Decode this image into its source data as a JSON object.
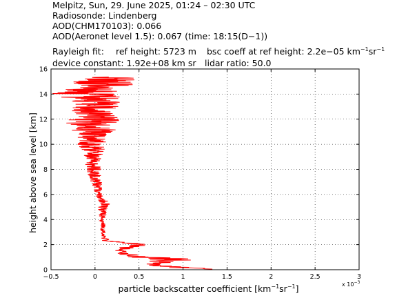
{
  "header": {
    "line1": "Melpitz, Sun, 29. June 2025, 01:24 – 02:30 UTC",
    "line2": "Radiosonde: Lindenberg",
    "line3": "AOD(CHM170103): 0.066",
    "line4": "AOD(Aeronet level 1.5): 0.067   (time: 18:15(D−1))",
    "rayleigh_label": "Rayleigh fit:",
    "ref_height": "ref height: 5723 m",
    "bsc_coeff_prefix": "bsc coeff at ref height: 2.2e−05 km",
    "bsc_exp1": "−1",
    "bsc_mid": "sr",
    "bsc_exp2": "−1",
    "device_constant": "device constant: 1.92e+08 km sr",
    "lidar_ratio": "lidar ratio: 50.0"
  },
  "chart_data": {
    "type": "line",
    "xlabel_prefix": "particle backscatter coefficient [km",
    "xlabel_exp1": "−1",
    "xlabel_mid": "sr",
    "xlabel_exp2": "−1",
    "xlabel_suffix": "]",
    "x_multiplier": "x 10",
    "x_multiplier_exp": "−3",
    "ylabel": "height above sea level [km]",
    "xlim": [
      -0.5,
      3
    ],
    "ylim": [
      0,
      16
    ],
    "xticks": [
      -0.5,
      0,
      0.5,
      1,
      1.5,
      2,
      2.5,
      3
    ],
    "xtick_labels": [
      "−0.5",
      "0",
      "0.5",
      "1",
      "1.5",
      "2",
      "2.5",
      "3"
    ],
    "yticks": [
      0,
      2,
      4,
      6,
      8,
      10,
      12,
      14,
      16
    ],
    "ytick_labels": [
      "0",
      "2",
      "4",
      "6",
      "8",
      "10",
      "12",
      "14",
      "16"
    ],
    "grid": true,
    "series_color": "#ff0000",
    "profile_envelope": [
      {
        "h": 0.05,
        "lo": 1.3,
        "hi": 1.35
      },
      {
        "h": 0.2,
        "lo": 0.65,
        "hi": 1.1
      },
      {
        "h": 0.4,
        "lo": 0.55,
        "hi": 0.75
      },
      {
        "h": 0.6,
        "lo": 0.6,
        "hi": 0.9
      },
      {
        "h": 0.85,
        "lo": 0.45,
        "hi": 1.2
      },
      {
        "h": 1.1,
        "lo": 0.3,
        "hi": 0.55
      },
      {
        "h": 1.35,
        "lo": 0.25,
        "hi": 0.4
      },
      {
        "h": 1.6,
        "lo": 0.22,
        "hi": 0.35
      },
      {
        "h": 1.85,
        "lo": 0.3,
        "hi": 0.55
      },
      {
        "h": 2.05,
        "lo": 0.4,
        "hi": 0.6
      },
      {
        "h": 2.3,
        "lo": 0.08,
        "hi": 0.18
      },
      {
        "h": 2.6,
        "lo": 0.07,
        "hi": 0.13
      },
      {
        "h": 3.0,
        "lo": 0.06,
        "hi": 0.12
      },
      {
        "h": 3.5,
        "lo": 0.06,
        "hi": 0.12
      },
      {
        "h": 4.0,
        "lo": 0.05,
        "hi": 0.11
      },
      {
        "h": 4.5,
        "lo": 0.04,
        "hi": 0.13
      },
      {
        "h": 5.0,
        "lo": 0.03,
        "hi": 0.15
      },
      {
        "h": 5.3,
        "lo": 0.05,
        "hi": 0.2
      },
      {
        "h": 5.7,
        "lo": 0.02,
        "hi": 0.1
      },
      {
        "h": 6.0,
        "lo": 0.0,
        "hi": 0.08
      },
      {
        "h": 6.5,
        "lo": -0.02,
        "hi": 0.08
      },
      {
        "h": 7.0,
        "lo": -0.05,
        "hi": 0.08
      },
      {
        "h": 7.5,
        "lo": -0.08,
        "hi": 0.08
      },
      {
        "h": 8.0,
        "lo": -0.1,
        "hi": 0.08
      },
      {
        "h": 8.5,
        "lo": -0.12,
        "hi": 0.05
      },
      {
        "h": 9.0,
        "lo": -0.12,
        "hi": 0.08
      },
      {
        "h": 9.5,
        "lo": -0.15,
        "hi": 0.12
      },
      {
        "h": 10.0,
        "lo": -0.2,
        "hi": 0.12
      },
      {
        "h": 10.5,
        "lo": -0.2,
        "hi": 0.15
      },
      {
        "h": 11.0,
        "lo": -0.25,
        "hi": 0.25
      },
      {
        "h": 11.5,
        "lo": -0.35,
        "hi": 0.2
      },
      {
        "h": 12.0,
        "lo": -0.3,
        "hi": 0.3
      },
      {
        "h": 12.5,
        "lo": -0.3,
        "hi": 0.2
      },
      {
        "h": 13.0,
        "lo": -0.28,
        "hi": 0.3
      },
      {
        "h": 13.5,
        "lo": -0.3,
        "hi": 0.3
      },
      {
        "h": 14.0,
        "lo": -0.5,
        "hi": 0.3
      },
      {
        "h": 14.5,
        "lo": -0.3,
        "hi": 0.45
      },
      {
        "h": 15.0,
        "lo": -0.25,
        "hi": 0.5
      },
      {
        "h": 15.35,
        "lo": -0.05,
        "hi": 0.55
      }
    ]
  }
}
